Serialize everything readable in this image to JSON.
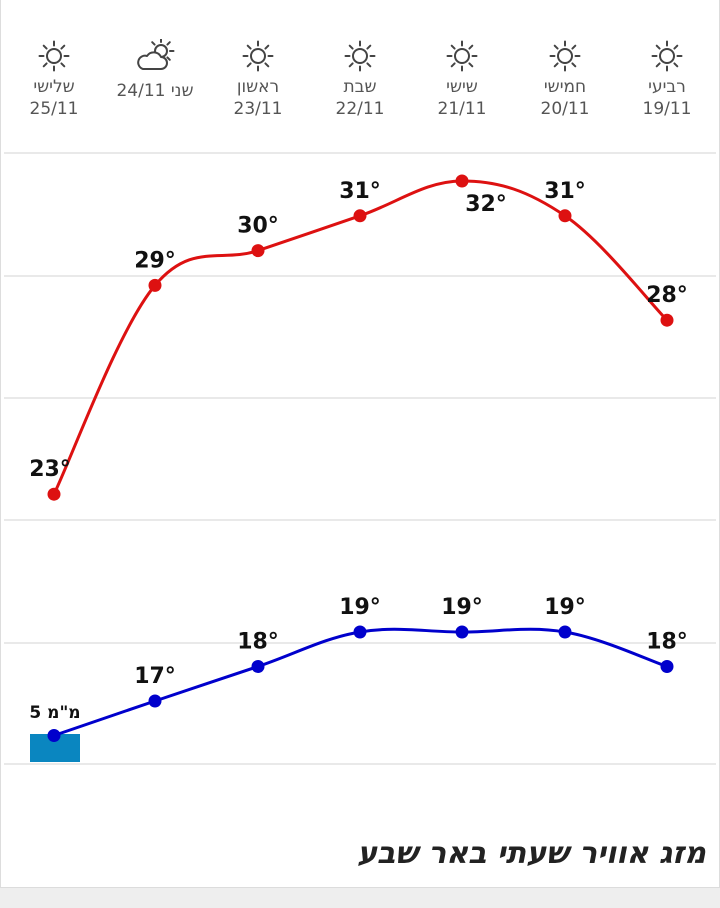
{
  "page_title": "מזג אוויר שעתי באר שבע",
  "days": [
    {
      "name": "רביעי",
      "date": "19/11",
      "icon": "sun-icon"
    },
    {
      "name": "חמישי",
      "date": "20/11",
      "icon": "sun-icon"
    },
    {
      "name": "שישי",
      "date": "21/11",
      "icon": "sun-icon"
    },
    {
      "name": "שבת",
      "date": "22/11",
      "icon": "sun-icon"
    },
    {
      "name": "ראשון",
      "date": "23/11",
      "icon": "sun-icon"
    },
    {
      "name": "שני",
      "date": "24/11",
      "icon": "partly-cloudy-icon"
    },
    {
      "name": "שלישי",
      "date": "25/11",
      "icon": "sun-icon"
    }
  ],
  "colors": {
    "max_line": "#dd1111",
    "min_line": "#0000cc",
    "rain_bar": "#0a86c0",
    "gridline": "#e2e2e2"
  },
  "chart_data": {
    "type": "line",
    "x_direction": "right-to-left",
    "categories": [
      "19/11",
      "20/11",
      "21/11",
      "22/11",
      "23/11",
      "24/11",
      "25/11"
    ],
    "series": [
      {
        "values": [
          28,
          31,
          32,
          31,
          30,
          29,
          23
        ],
        "labels": [
          "28°",
          "31°",
          "32°",
          "31°",
          "30°",
          "29°",
          "23°"
        ],
        "color": "#dd1111"
      },
      {
        "values": [
          18,
          19,
          19,
          19,
          18,
          17,
          16
        ],
        "labels": [
          "18°",
          "19°",
          "19°",
          "19°",
          "18°",
          "17°",
          ""
        ],
        "color": "#0000cc"
      }
    ],
    "precipitation": {
      "category": "25/11",
      "value": 5,
      "label": "5 מ\"מ",
      "color": "#0a86c0"
    },
    "grid": true,
    "legend": "none"
  }
}
